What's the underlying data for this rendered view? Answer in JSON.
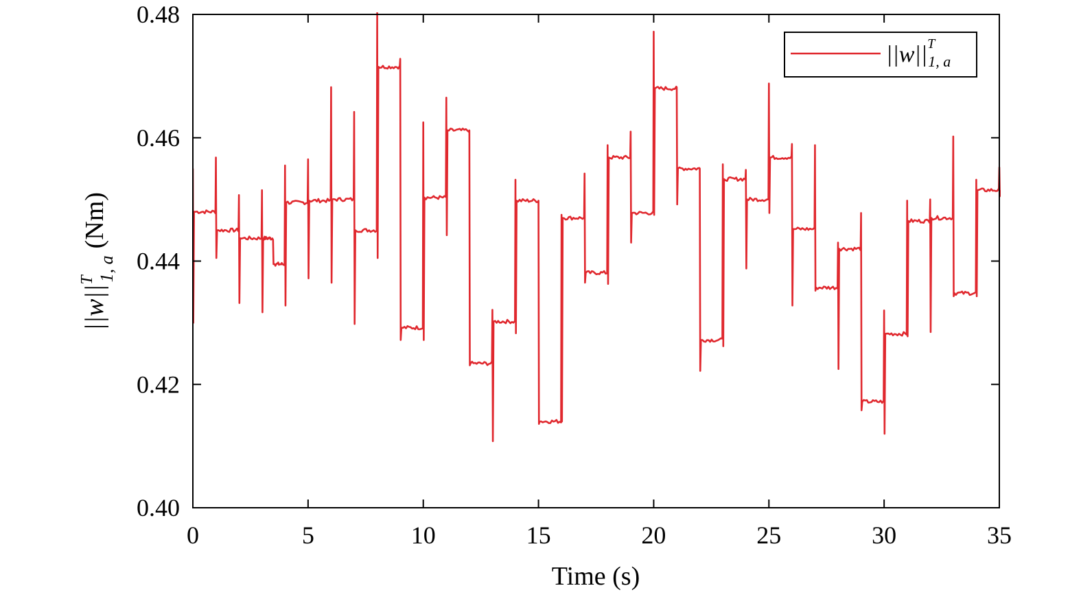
{
  "chart_data": {
    "type": "line",
    "xlabel": "Time (s)",
    "ylabel_norm": "||w||",
    "ylabel_sup": "T",
    "ylabel_sub": "1, a",
    "ylabel_unit": "(Nm)",
    "xlim": [
      0,
      35
    ],
    "ylim": [
      0.4,
      0.48
    ],
    "x_ticks": [
      0,
      5,
      10,
      15,
      20,
      25,
      30,
      35
    ],
    "x_tick_labels": [
      "0",
      "5",
      "10",
      "15",
      "20",
      "25",
      "30",
      "35"
    ],
    "y_ticks": [
      0.4,
      0.42,
      0.44,
      0.46,
      0.48
    ],
    "y_tick_labels": [
      "0.40",
      "0.42",
      "0.44",
      "0.46",
      "0.48"
    ],
    "grid": false,
    "legend": {
      "position": "top-right",
      "norm": "||w||",
      "sup": "T",
      "sub": "1, a"
    },
    "series": [
      {
        "color": "#e0282e",
        "segments": [
          {
            "start": 0,
            "end": 1,
            "level": 0.448,
            "spike_high": 0.455,
            "spike_low": 0.43
          },
          {
            "start": 1,
            "end": 2,
            "level": 0.445,
            "spike_high": 0.4568,
            "spike_low": 0.4405
          },
          {
            "start": 2,
            "end": 3,
            "level": 0.4437,
            "spike_high": 0.4507,
            "spike_low": 0.4332
          },
          {
            "start": 3,
            "end": 3.5,
            "level": 0.4437,
            "spike_high": 0.4515,
            "spike_low": 0.4317
          },
          {
            "start": 3.5,
            "end": 4,
            "level": 0.4395,
            "spike_high": 0.4395,
            "spike_low": 0.4395
          },
          {
            "start": 4,
            "end": 5,
            "level": 0.4495,
            "spike_high": 0.4555,
            "spike_low": 0.4328
          },
          {
            "start": 5,
            "end": 6,
            "level": 0.4498,
            "spike_high": 0.4565,
            "spike_low": 0.4372
          },
          {
            "start": 6,
            "end": 7,
            "level": 0.45,
            "spike_high": 0.4682,
            "spike_low": 0.4365
          },
          {
            "start": 7,
            "end": 8,
            "level": 0.445,
            "spike_high": 0.4642,
            "spike_low": 0.4298
          },
          {
            "start": 8,
            "end": 9,
            "level": 0.4715,
            "spike_high": 0.4805,
            "spike_low": 0.4405
          },
          {
            "start": 9,
            "end": 10,
            "level": 0.4292,
            "spike_high": 0.4728,
            "spike_low": 0.4272
          },
          {
            "start": 10,
            "end": 11,
            "level": 0.4503,
            "spike_high": 0.4625,
            "spike_low": 0.4272
          },
          {
            "start": 11,
            "end": 12,
            "level": 0.4612,
            "spike_high": 0.4665,
            "spike_low": 0.4442
          },
          {
            "start": 12,
            "end": 13,
            "level": 0.4234,
            "spike_high": 0.4612,
            "spike_low": 0.4231
          },
          {
            "start": 13,
            "end": 14,
            "level": 0.4302,
            "spike_high": 0.4321,
            "spike_low": 0.4108
          },
          {
            "start": 14,
            "end": 15,
            "level": 0.4498,
            "spike_high": 0.4532,
            "spike_low": 0.4283
          },
          {
            "start": 15,
            "end": 16,
            "level": 0.414,
            "spike_high": 0.4498,
            "spike_low": 0.4136
          },
          {
            "start": 16,
            "end": 17,
            "level": 0.447,
            "spike_high": 0.4475,
            "spike_low": 0.414
          },
          {
            "start": 17,
            "end": 18,
            "level": 0.4381,
            "spike_high": 0.4542,
            "spike_low": 0.4365
          },
          {
            "start": 18,
            "end": 19,
            "level": 0.4568,
            "spike_high": 0.4588,
            "spike_low": 0.4363
          },
          {
            "start": 19,
            "end": 20,
            "level": 0.4478,
            "spike_high": 0.461,
            "spike_low": 0.443
          },
          {
            "start": 20,
            "end": 21,
            "level": 0.468,
            "spike_high": 0.4772,
            "spike_low": 0.4475
          },
          {
            "start": 21,
            "end": 22,
            "level": 0.455,
            "spike_high": 0.4682,
            "spike_low": 0.4492
          },
          {
            "start": 22,
            "end": 23,
            "level": 0.4272,
            "spike_high": 0.455,
            "spike_low": 0.4222
          },
          {
            "start": 23,
            "end": 24,
            "level": 0.4533,
            "spike_high": 0.4557,
            "spike_low": 0.4262
          },
          {
            "start": 24,
            "end": 25,
            "level": 0.45,
            "spike_high": 0.4548,
            "spike_low": 0.4388
          },
          {
            "start": 25,
            "end": 26,
            "level": 0.4568,
            "spike_high": 0.4688,
            "spike_low": 0.4478
          },
          {
            "start": 26,
            "end": 27,
            "level": 0.4452,
            "spike_high": 0.459,
            "spike_low": 0.4328
          },
          {
            "start": 27,
            "end": 28,
            "level": 0.4357,
            "spike_high": 0.4588,
            "spike_low": 0.4352
          },
          {
            "start": 28,
            "end": 29,
            "level": 0.442,
            "spike_high": 0.443,
            "spike_low": 0.4225
          },
          {
            "start": 29,
            "end": 30,
            "level": 0.4172,
            "spike_high": 0.4478,
            "spike_low": 0.4158
          },
          {
            "start": 30,
            "end": 31,
            "level": 0.4282,
            "spike_high": 0.432,
            "spike_low": 0.412
          },
          {
            "start": 31,
            "end": 32,
            "level": 0.4465,
            "spike_high": 0.4498,
            "spike_low": 0.4278
          },
          {
            "start": 32,
            "end": 33,
            "level": 0.447,
            "spike_high": 0.45,
            "spike_low": 0.4285
          },
          {
            "start": 33,
            "end": 34,
            "level": 0.4348,
            "spike_high": 0.4602,
            "spike_low": 0.4343
          },
          {
            "start": 34,
            "end": 35,
            "level": 0.4515,
            "spike_high": 0.4532,
            "spike_low": 0.4343
          },
          {
            "start": 35,
            "end": 35,
            "level": 0.4515,
            "spike_high": 0.4552,
            "spike_low": 0.4505
          }
        ]
      }
    ]
  }
}
